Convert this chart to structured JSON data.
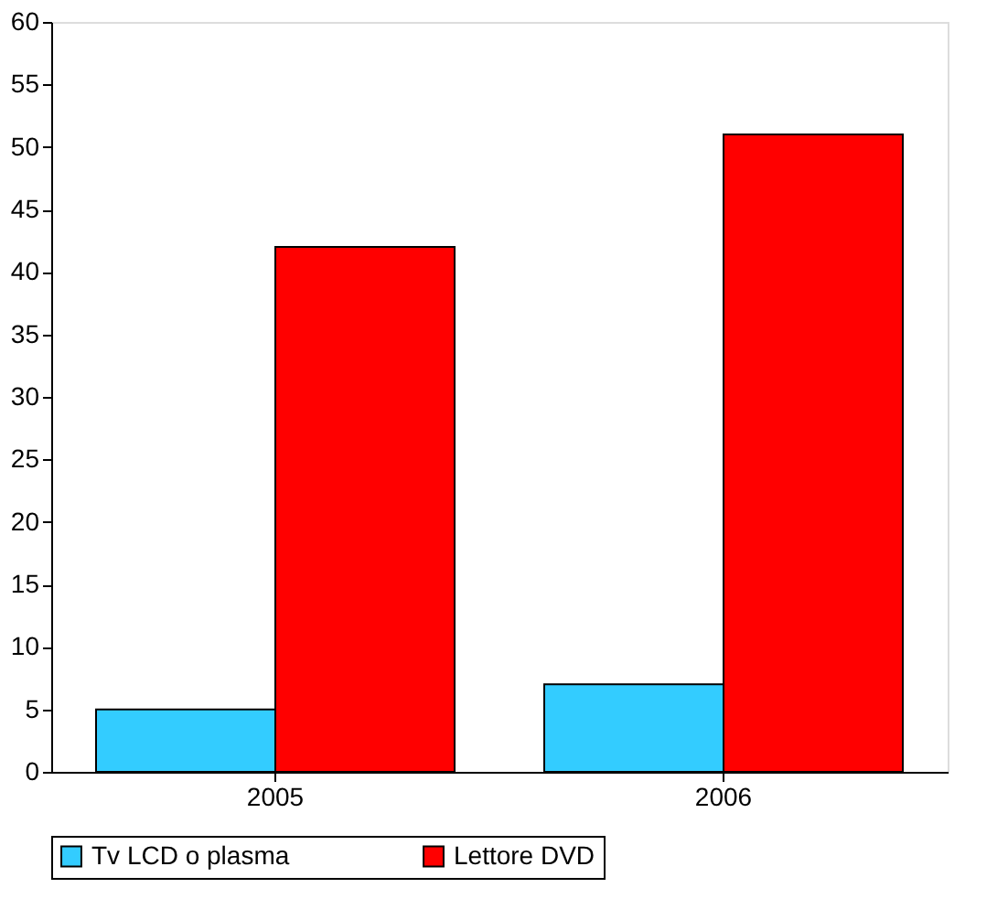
{
  "chart_data": {
    "type": "bar",
    "categories": [
      "2005",
      "2006"
    ],
    "series": [
      {
        "name": "Tv LCD o plasma",
        "color": "#33ccff",
        "values": [
          5,
          7
        ]
      },
      {
        "name": "Lettore DVD",
        "color": "#ff0000",
        "values": [
          42,
          51
        ]
      }
    ],
    "ylim": [
      0,
      60
    ],
    "yticks": [
      0,
      5,
      10,
      15,
      20,
      25,
      30,
      35,
      40,
      45,
      50,
      55,
      60
    ],
    "grid": false,
    "legend": "bottom"
  }
}
